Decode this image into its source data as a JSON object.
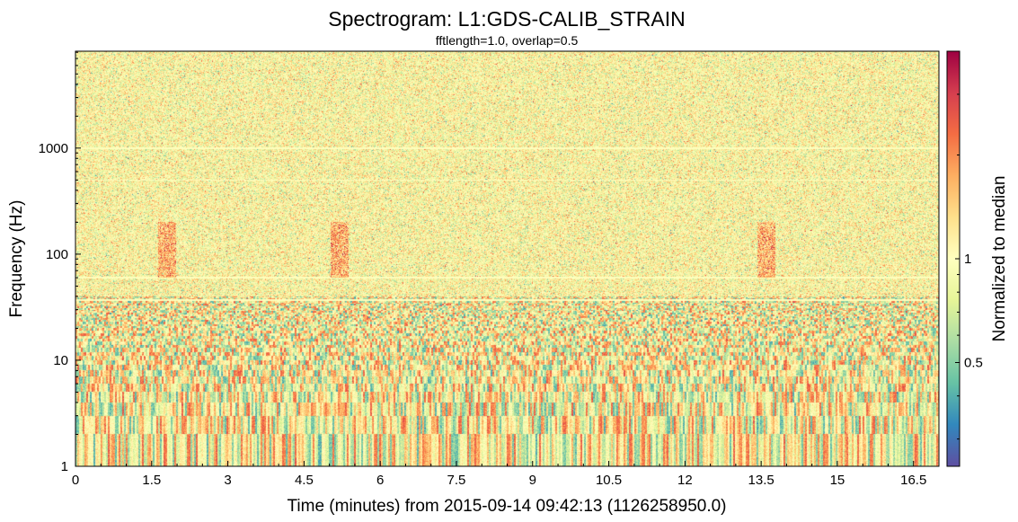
{
  "chart_data": {
    "type": "heatmap",
    "title": "Spectrogram: L1:GDS-CALIB_STRAIN",
    "subtitle": "fftlength=1.0, overlap=0.5",
    "xlabel": "Time (minutes) from 2015-09-14 09:42:13 (1126258950.0)",
    "ylabel": "Frequency (Hz)",
    "colorbar_label": "Normalized to median",
    "x_range": [
      0,
      17
    ],
    "y_range": [
      1,
      8192
    ],
    "y_scale": "log",
    "x_ticks": [
      {
        "value": 0,
        "label": "0"
      },
      {
        "value": 1.5,
        "label": "1.5"
      },
      {
        "value": 3,
        "label": "3"
      },
      {
        "value": 4.5,
        "label": "4.5"
      },
      {
        "value": 6,
        "label": "6"
      },
      {
        "value": 7.5,
        "label": "7.5"
      },
      {
        "value": 9,
        "label": "9"
      },
      {
        "value": 10.5,
        "label": "10.5"
      },
      {
        "value": 12,
        "label": "12"
      },
      {
        "value": 13.5,
        "label": "13.5"
      },
      {
        "value": 15,
        "label": "15"
      },
      {
        "value": 16.5,
        "label": "16.5"
      }
    ],
    "y_ticks": [
      {
        "value": 1,
        "label": "1"
      },
      {
        "value": 10,
        "label": "10"
      },
      {
        "value": 100,
        "label": "100"
      },
      {
        "value": 1000,
        "label": "1000"
      }
    ],
    "colorbar_range": [
      0.25,
      4
    ],
    "colorbar_scale": "log",
    "colorbar_ticks": [
      {
        "value": 0.5,
        "label": "0.5"
      },
      {
        "value": 1,
        "label": "1"
      }
    ],
    "colormap": [
      "#5e4fa2",
      "#3288bd",
      "#66c2a5",
      "#abdda4",
      "#e6f598",
      "#ffffbf",
      "#fee08b",
      "#fdae61",
      "#f46d43",
      "#d53e4f",
      "#9e0142"
    ],
    "features": {
      "broadband_noise_mean": 1.0,
      "low_frequency_high_variance_below_hz": 40,
      "line_features_hz": [
        37,
        60,
        500,
        1000
      ],
      "excess_power_regions": [
        {
          "t_minutes": 5.2,
          "f_hz": [
            60,
            200
          ]
        },
        {
          "t_minutes": 1.8,
          "f_hz": [
            60,
            200
          ]
        },
        {
          "t_minutes": 13.6,
          "f_hz": [
            60,
            200
          ]
        }
      ]
    },
    "grid": false,
    "legend": "colorbar-right"
  }
}
